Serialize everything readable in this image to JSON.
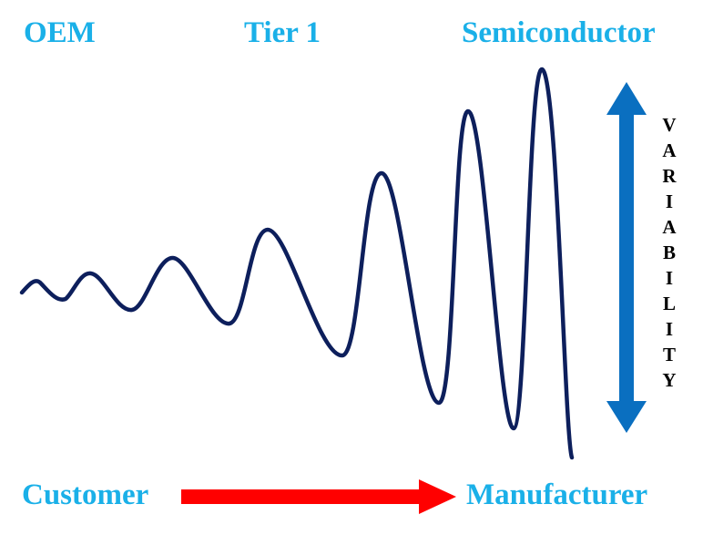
{
  "colors": {
    "label": "#1ab0e8",
    "wave": "#0d1f5c",
    "variability_arrow": "#0a6fc0",
    "flow_arrow": "#ff0000",
    "variability_text": "#000000"
  },
  "top_labels": {
    "oem": "OEM",
    "tier1": "Tier 1",
    "semiconductor": "Semiconductor"
  },
  "bottom_labels": {
    "customer": "Customer",
    "manufacturer": "Manufacturer"
  },
  "variability": {
    "letters": [
      "V",
      "A",
      "R",
      "I",
      "A",
      "B",
      "I",
      "L",
      "I",
      "T",
      "Y"
    ]
  },
  "icons": {
    "wave": "oscillating-wave",
    "vertical_arrow": "double-headed-vertical-arrow",
    "horizontal_arrow": "right-arrow"
  }
}
